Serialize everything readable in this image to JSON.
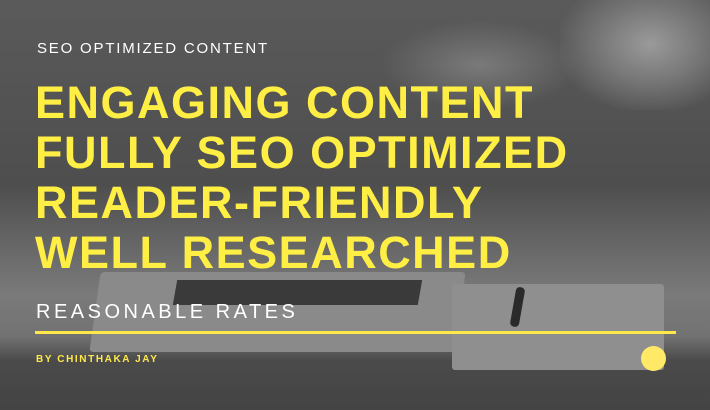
{
  "subtitle": "SEO OPTIMIZED CONTENT",
  "headline": [
    "ENGAGING CONTENT",
    "FULLY SEO OPTIMIZED",
    "READER-FRIENDLY",
    "WELL RESEARCHED"
  ],
  "tagline": "REASONABLE RATES",
  "author": "BY CHINTHAKA JAY",
  "colors": {
    "accent": "#ffee44",
    "text": "#ffffff",
    "background": "#555555"
  }
}
